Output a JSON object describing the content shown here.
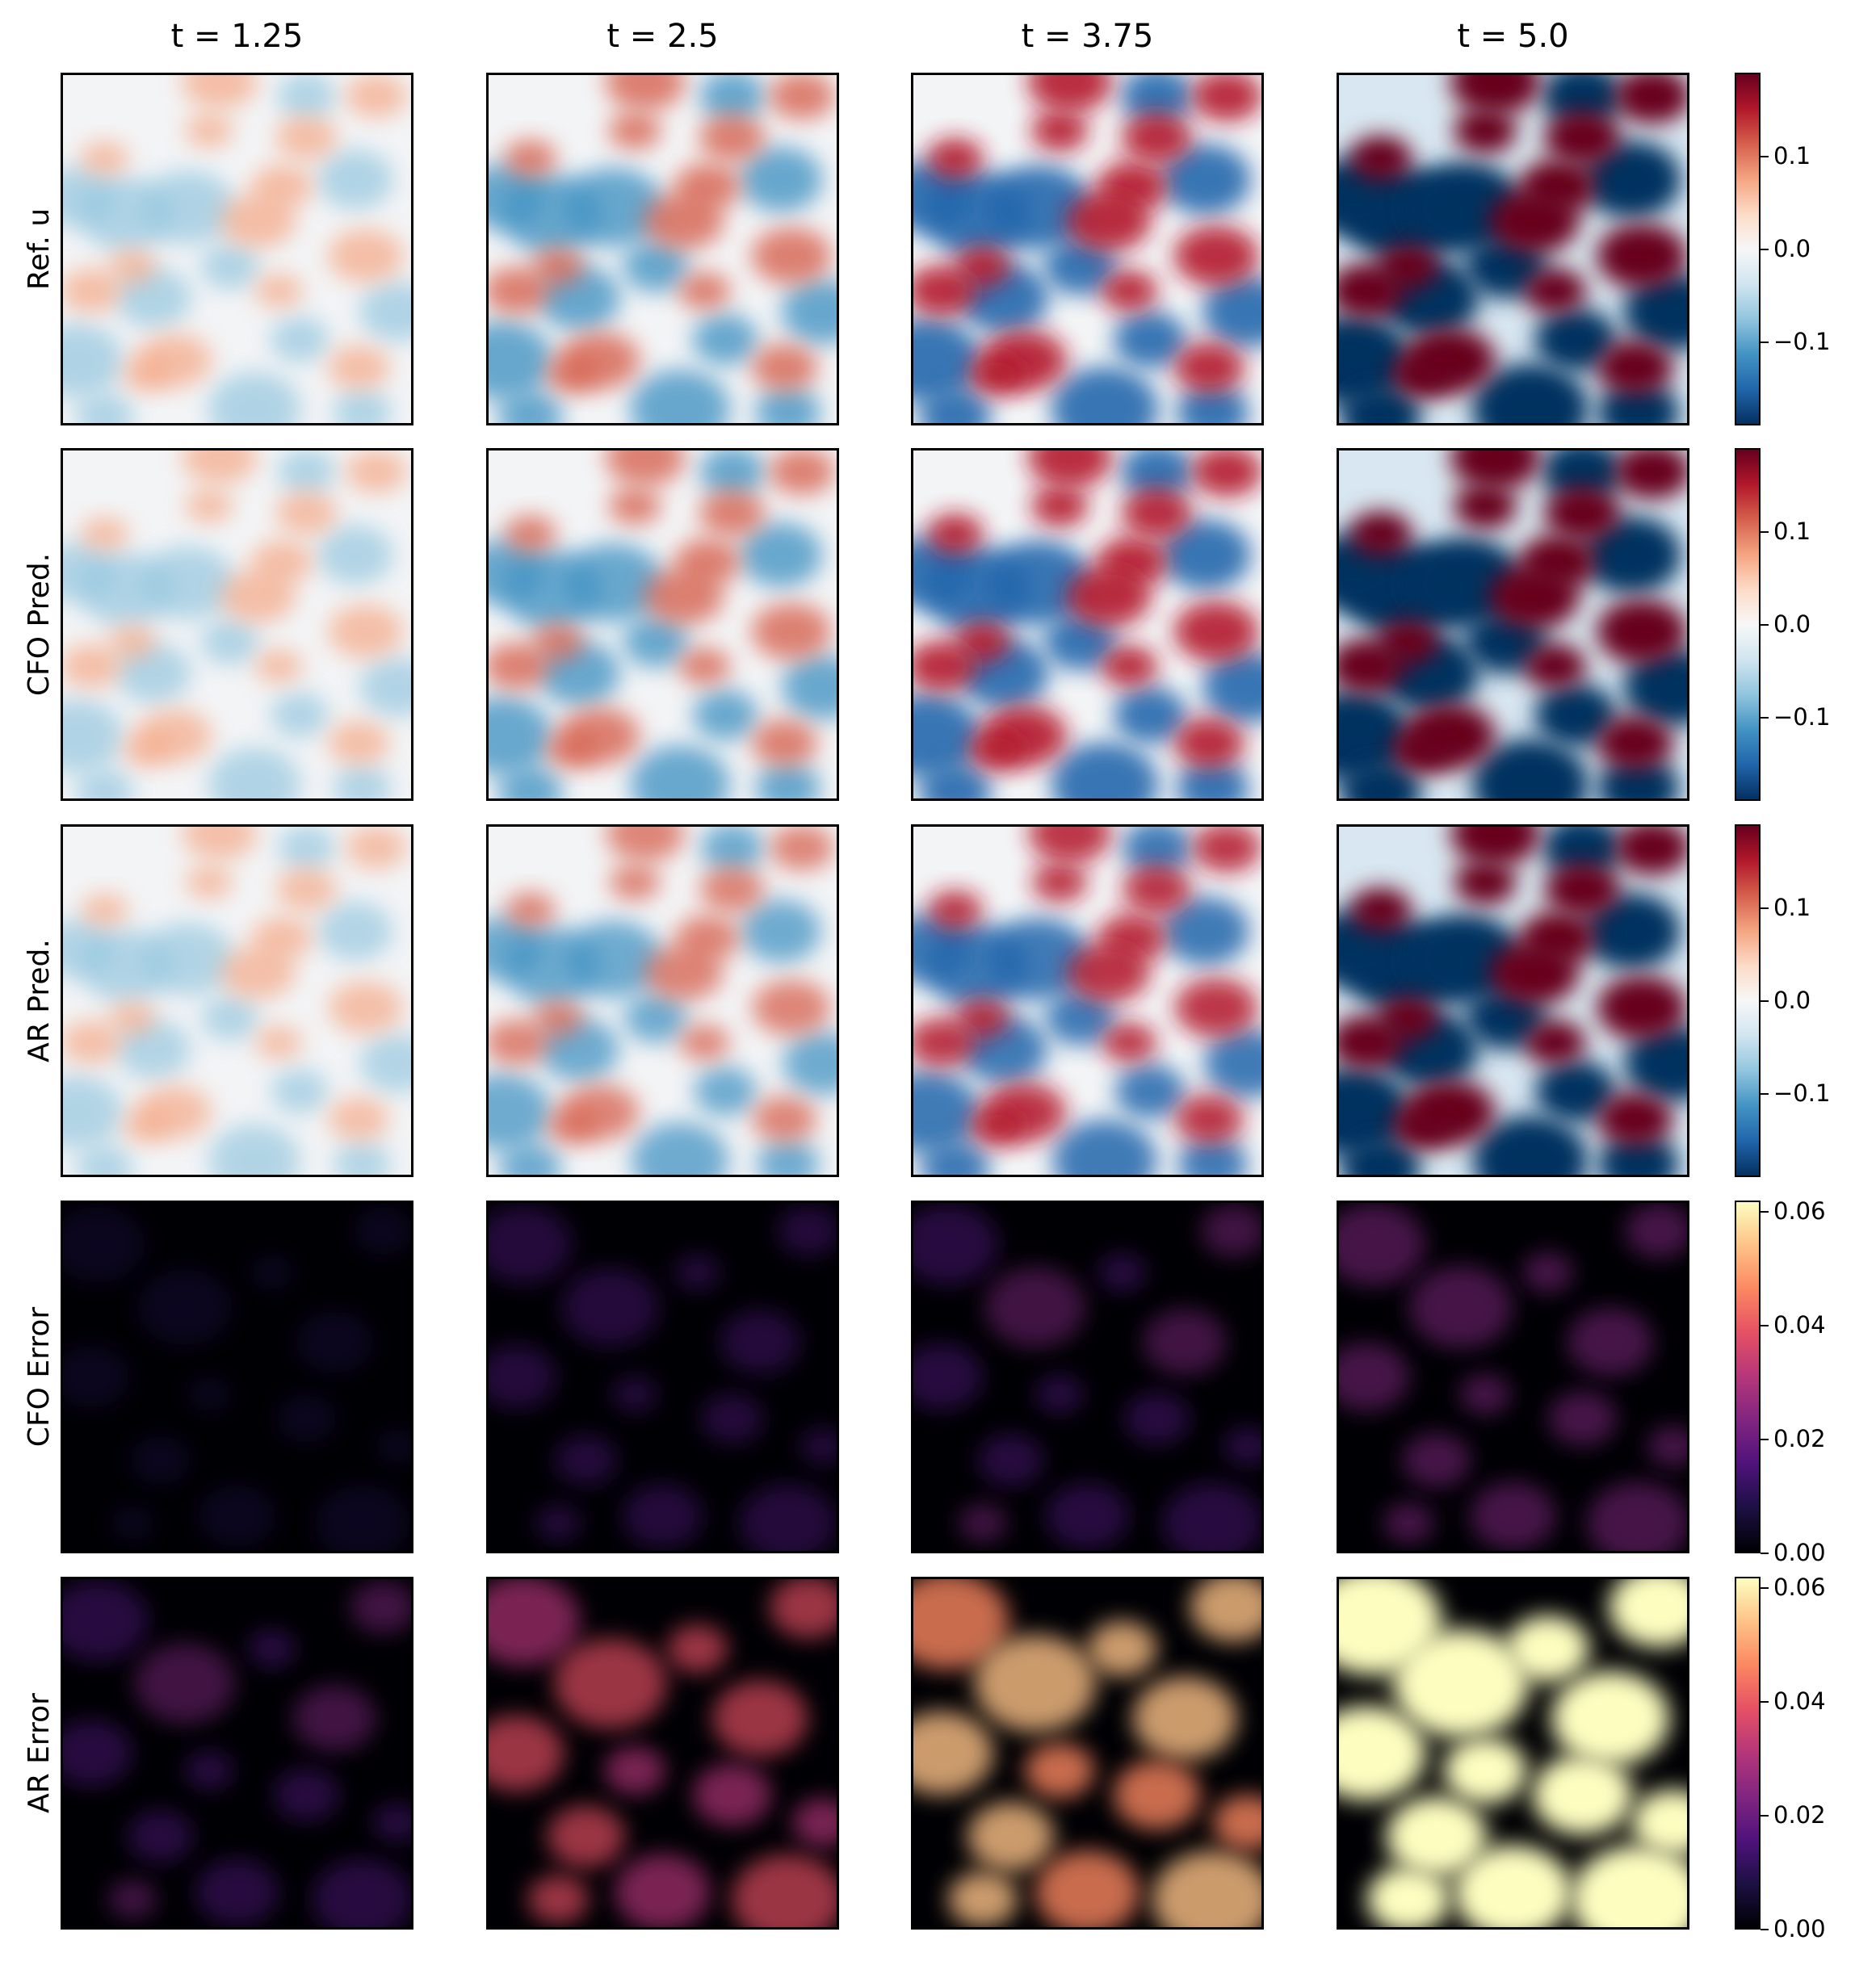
{
  "chart_data": {
    "type": "heatmap",
    "columns": [
      "t = 1.25",
      "t = 2.5",
      "t = 3.75",
      "t = 5.0"
    ],
    "rows": [
      {
        "label": "Ref. u",
        "colormap": "RdBu_r",
        "intensity": [
          0.35,
          0.6,
          0.85,
          1.2
        ],
        "kind": "field"
      },
      {
        "label": "CFO Pred.",
        "colormap": "RdBu_r",
        "intensity": [
          0.33,
          0.58,
          0.85,
          1.2
        ],
        "kind": "field"
      },
      {
        "label": "AR Pred.",
        "colormap": "RdBu_r",
        "intensity": [
          0.3,
          0.5,
          0.75,
          1.15
        ],
        "kind": "field"
      },
      {
        "label": "CFO Error",
        "colormap": "magma",
        "intensity": [
          0.03,
          0.12,
          0.2,
          0.28
        ],
        "kind": "error"
      },
      {
        "label": "AR Error",
        "colormap": "magma",
        "intensity": [
          0.2,
          0.55,
          0.8,
          1.2
        ],
        "kind": "error"
      }
    ],
    "colorbars": [
      {
        "ticks": [
          "0.1",
          "0.0",
          "−0.1"
        ],
        "tick_values": [
          0.1,
          0.0,
          -0.1
        ],
        "range": [
          -0.19,
          0.19
        ]
      },
      {
        "ticks": [
          "0.1",
          "0.0",
          "−0.1"
        ],
        "tick_values": [
          0.1,
          0.0,
          -0.1
        ],
        "range": [
          -0.19,
          0.19
        ]
      },
      {
        "ticks": [
          "0.1",
          "0.0",
          "−0.1"
        ],
        "tick_values": [
          0.1,
          0.0,
          -0.1
        ],
        "range": [
          -0.19,
          0.19
        ]
      },
      {
        "ticks": [
          "0.06",
          "0.04",
          "0.02",
          "0.00"
        ],
        "tick_values": [
          0.06,
          0.04,
          0.02,
          0.0
        ],
        "range": [
          0.0,
          0.062
        ]
      },
      {
        "ticks": [
          "0.06",
          "0.04",
          "0.02",
          "0.00"
        ],
        "tick_values": [
          0.06,
          0.04,
          0.02,
          0.0
        ],
        "range": [
          0.0,
          0.062
        ]
      }
    ]
  },
  "colors": {
    "diverging": [
      "#053061",
      "#2166ac",
      "#4393c3",
      "#92c5de",
      "#d1e5f0",
      "#f7f7f7",
      "#fddbc7",
      "#f4a582",
      "#d6604d",
      "#b2182b",
      "#67001f"
    ],
    "sequential": [
      "#000004",
      "#1c1044",
      "#4f127b",
      "#812581",
      "#b5367a",
      "#e55064",
      "#fb8761",
      "#fec287",
      "#fcfdbf"
    ]
  }
}
